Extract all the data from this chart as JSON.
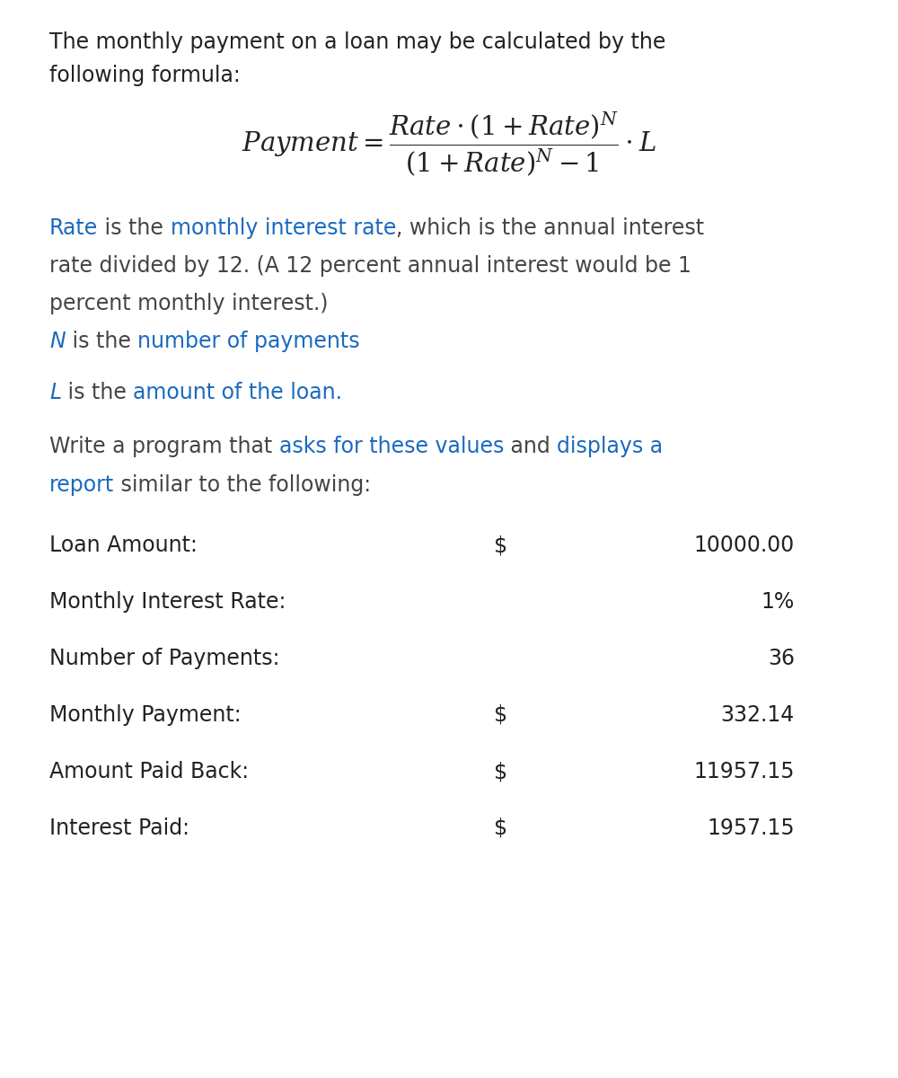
{
  "bg_color": "#ffffff",
  "text_color": "#444444",
  "blue_color": "#1a6abf",
  "dark_color": "#222222",
  "font_size_body": 17,
  "font_size_table": 17,
  "intro_line1": "The monthly payment on a loan may be calculated by the",
  "intro_line2": "following formula:",
  "rate_line2": "rate divided by 12. (A 12 percent annual interest would be 1",
  "rate_line3": "percent monthly interest.)",
  "table_rows": [
    {
      "label": "Loan Amount:",
      "dollar": "$",
      "value": "10000.00",
      "nodollar": false
    },
    {
      "label": "Monthly Interest Rate:",
      "dollar": "",
      "value": "1%",
      "nodollar": true
    },
    {
      "label": "Number of Payments:",
      "dollar": "",
      "value": "36",
      "nodollar": true
    },
    {
      "label": "Monthly Payment:",
      "dollar": "$",
      "value": "332.14",
      "nodollar": false
    },
    {
      "label": "Amount Paid Back:",
      "dollar": "$",
      "value": "11957.15",
      "nodollar": false
    },
    {
      "label": "Interest Paid:",
      "dollar": "$",
      "value": "1957.15",
      "nodollar": false
    }
  ]
}
